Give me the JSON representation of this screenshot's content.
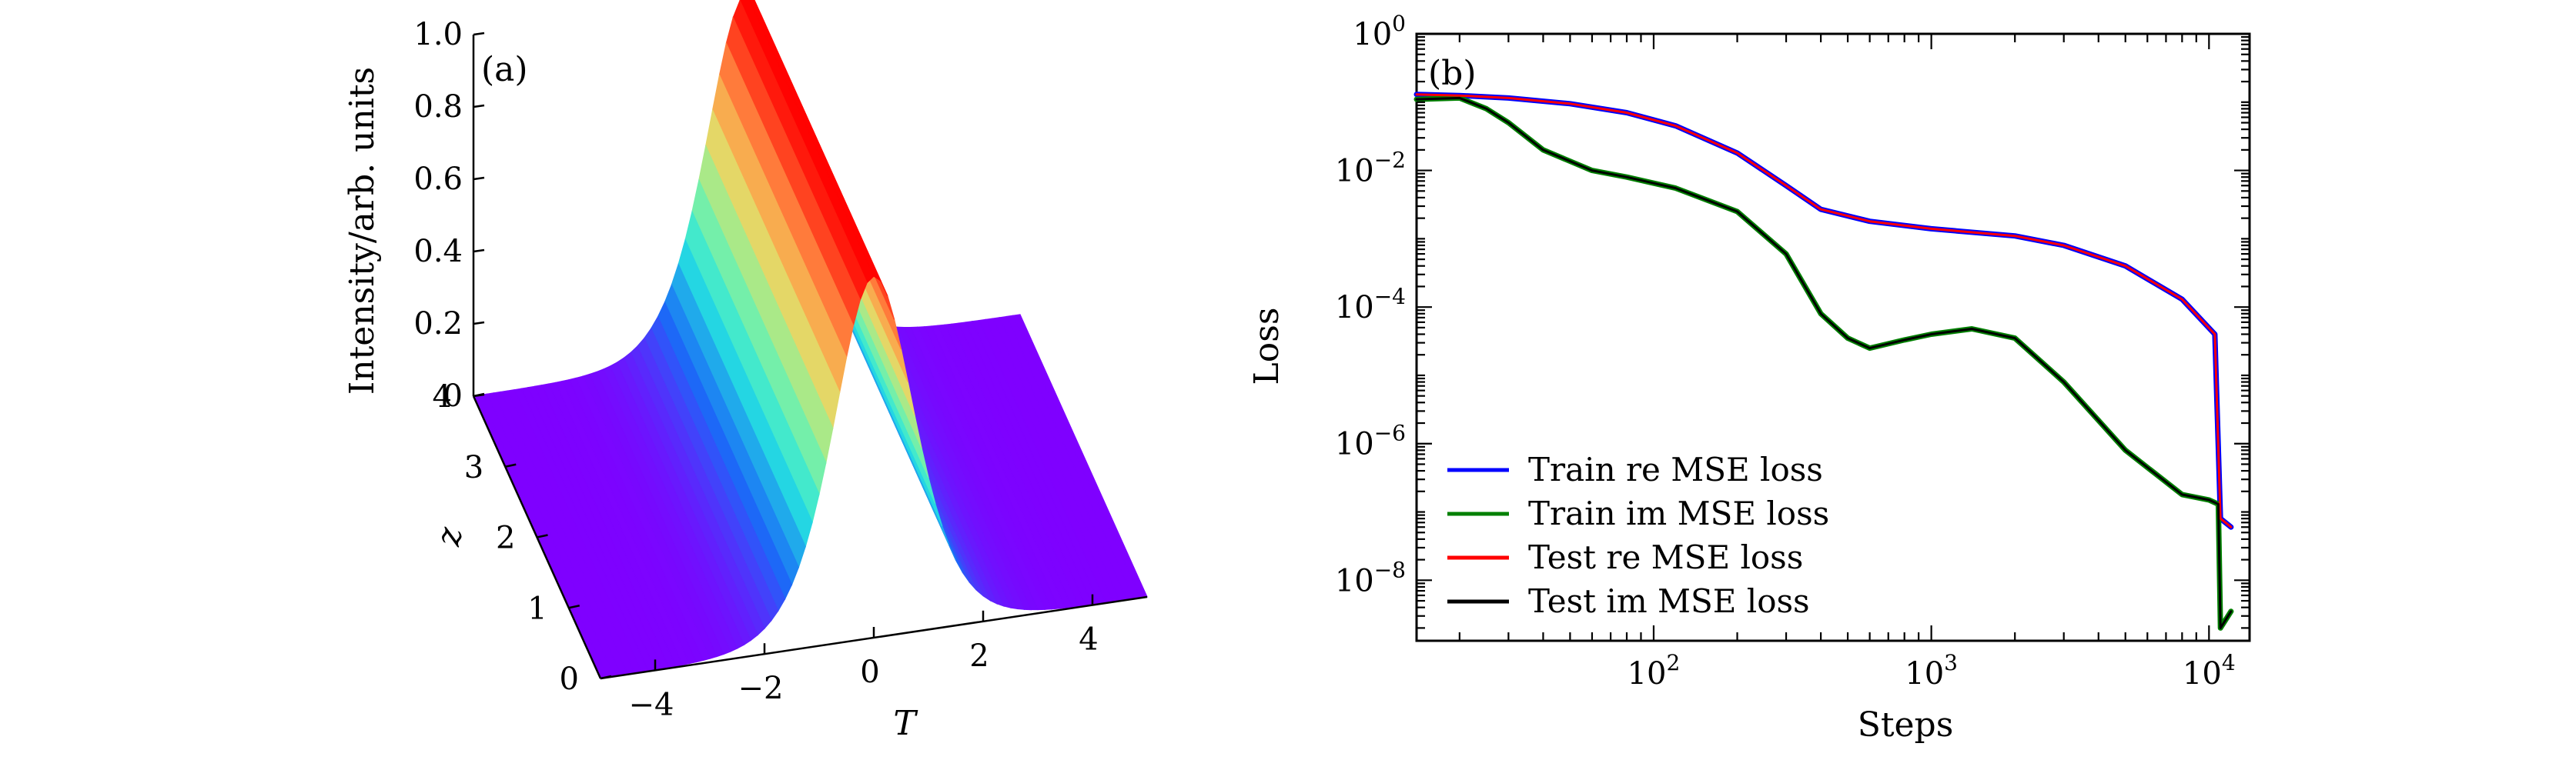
{
  "panels": {
    "a": {
      "label": "(a)"
    },
    "b": {
      "label": "(b)"
    }
  },
  "chart_data": [
    {
      "type": "surface",
      "panel": "a",
      "xlabel": "T",
      "ylabel": "z",
      "zlabel": "Intensity/arb. units",
      "xlim": [
        -5,
        5
      ],
      "ylim": [
        0,
        4
      ],
      "zlim": [
        0,
        1.0
      ],
      "x_ticks": [
        -4,
        -2,
        0,
        2,
        4
      ],
      "x_tick_labels": [
        "−4",
        "−2",
        "0",
        "2",
        "4"
      ],
      "y_ticks": [
        0,
        1,
        2,
        3,
        4
      ],
      "y_tick_labels": [
        "0",
        "1",
        "2",
        "3",
        "4"
      ],
      "z_ticks": [
        0,
        0.2,
        0.4,
        0.6,
        0.8,
        1.0
      ],
      "z_tick_labels": [
        "0",
        "0.2",
        "0.4",
        "0.6",
        "0.8",
        "1.0"
      ],
      "colormap": [
        "#7f00ff",
        "#1a6cf7",
        "#26e6e0",
        "#8cf29a",
        "#f2d35f",
        "#ff7a3a",
        "#ff0000"
      ],
      "surface": "stationary pulse, |u|^2 = sech^2(T), independent of z"
    },
    {
      "type": "line",
      "panel": "b",
      "xlabel": "Steps",
      "ylabel": "Loss",
      "xscale": "log",
      "yscale": "log",
      "xlim": [
        14,
        14000
      ],
      "ylim": [
        1.3e-09,
        1.0
      ],
      "x_ticks": [
        100,
        1000,
        10000
      ],
      "x_tick_labels": [
        {
          "base": "10",
          "exp": "2"
        },
        {
          "base": "10",
          "exp": "3"
        },
        {
          "base": "10",
          "exp": "4"
        }
      ],
      "y_ticks": [
        1.0,
        0.01,
        0.0001,
        1e-06,
        1e-08
      ],
      "y_tick_labels": [
        {
          "base": "10",
          "exp": "0"
        },
        {
          "base": "10",
          "exp": "−2"
        },
        {
          "base": "10",
          "exp": "−4"
        },
        {
          "base": "10",
          "exp": "−6"
        },
        {
          "base": "10",
          "exp": "−8"
        }
      ],
      "legend_position": "bottom-left",
      "series": [
        {
          "name": "Train re MSE loss",
          "color": "#0000ff",
          "x": [
            14,
            20,
            30,
            50,
            80,
            120,
            200,
            300,
            400,
            600,
            1000,
            2000,
            3000,
            5000,
            8000,
            10500,
            11000,
            12000
          ],
          "y": [
            0.13,
            0.125,
            0.115,
            0.095,
            0.07,
            0.045,
            0.018,
            0.006,
            0.0027,
            0.0018,
            0.0014,
            0.0011,
            0.0008,
            0.0004,
            0.00013,
            4e-05,
            8e-08,
            6e-08
          ]
        },
        {
          "name": "Train im MSE loss",
          "color": "#008000",
          "x": [
            14,
            20,
            25,
            30,
            40,
            60,
            80,
            120,
            200,
            300,
            400,
            500,
            600,
            800,
            1000,
            1400,
            2000,
            3000,
            5000,
            8000,
            10000,
            10800,
            11000,
            12000
          ],
          "y": [
            0.11,
            0.115,
            0.08,
            0.05,
            0.02,
            0.01,
            0.008,
            0.0055,
            0.0025,
            0.0006,
            8e-05,
            3.5e-05,
            2.5e-05,
            3.3e-05,
            4e-05,
            4.8e-05,
            3.5e-05,
            8e-06,
            8e-07,
            1.8e-07,
            1.5e-07,
            1.3e-07,
            2e-09,
            3.5e-09
          ]
        },
        {
          "name": "Test re MSE loss",
          "color": "#ff0000",
          "x": [
            14,
            20,
            30,
            50,
            80,
            120,
            200,
            300,
            400,
            600,
            1000,
            2000,
            3000,
            5000,
            8000,
            10500,
            11000,
            12000
          ],
          "y": [
            0.13,
            0.125,
            0.115,
            0.095,
            0.07,
            0.045,
            0.018,
            0.006,
            0.0027,
            0.0018,
            0.0014,
            0.0011,
            0.0008,
            0.0004,
            0.00013,
            4e-05,
            8e-08,
            6e-08
          ]
        },
        {
          "name": "Test im MSE loss",
          "color": "#000000",
          "x": [
            14,
            20,
            25,
            30,
            40,
            60,
            80,
            120,
            200,
            300,
            400,
            500,
            600,
            800,
            1000,
            1400,
            2000,
            3000,
            5000,
            8000,
            10000,
            10800,
            11000,
            12000
          ],
          "y": [
            0.11,
            0.115,
            0.08,
            0.05,
            0.02,
            0.01,
            0.008,
            0.0055,
            0.0025,
            0.0006,
            8e-05,
            3.5e-05,
            2.5e-05,
            3.3e-05,
            4e-05,
            4.8e-05,
            3.5e-05,
            8e-06,
            8e-07,
            1.8e-07,
            1.5e-07,
            1.3e-07,
            2e-09,
            3.5e-09
          ]
        }
      ]
    }
  ]
}
